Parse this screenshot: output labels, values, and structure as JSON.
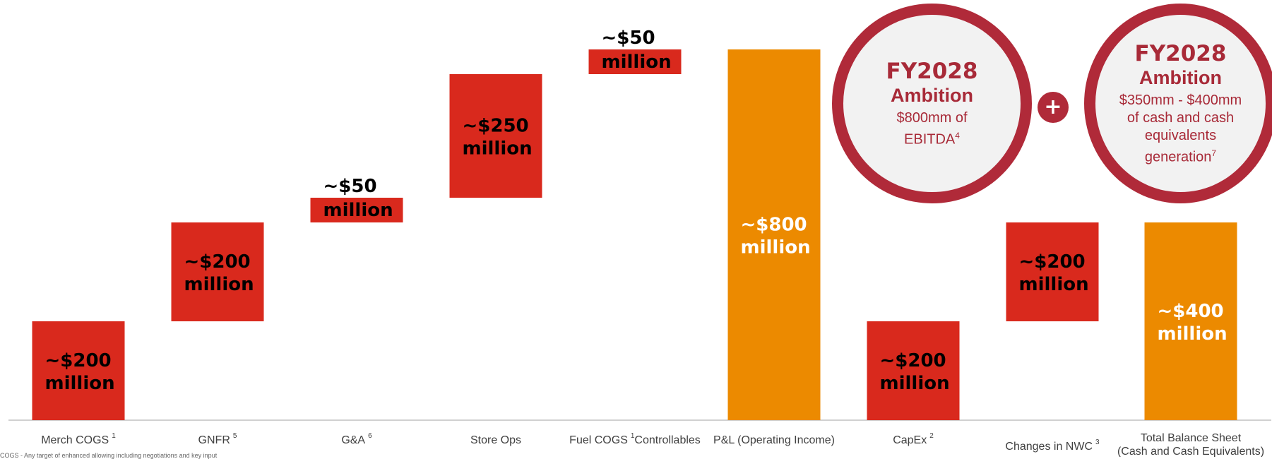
{
  "chart_data": {
    "type": "bar",
    "subtype": "waterfall",
    "ylim": [
      0,
      1100
    ],
    "colors": {
      "red": "#d9291d",
      "orange": "#ec8a00"
    },
    "bars": [
      {
        "category": "Merch COGS",
        "sup": "1",
        "base": 0,
        "value": 200,
        "amount": "~$200",
        "unit": "million",
        "color": "red",
        "labelColor": "#000000"
      },
      {
        "category": "GNFR",
        "sup": "5",
        "base": 200,
        "value": 200,
        "amount": "~$200",
        "unit": "million",
        "color": "red",
        "labelColor": "#000000"
      },
      {
        "category": "G&A",
        "sup": "6",
        "base": 400,
        "value": 50,
        "amount": "~$50",
        "unit": "million",
        "color": "red",
        "labelColor": "#000000"
      },
      {
        "category": "Store Ops",
        "sup": "",
        "base": 450,
        "value": 250,
        "amount": "~$250",
        "unit": "million",
        "color": "red",
        "labelColor": "#000000"
      },
      {
        "category": "Fuel COGS",
        "sup": "1",
        "category_suffix": "Controllables",
        "base": 700,
        "value": 50,
        "amount": "~$50",
        "unit": "million",
        "color": "red",
        "labelColor": "#000000"
      },
      {
        "category": "P&L (Operating Income)",
        "sup": "",
        "base": 0,
        "value": 750,
        "amount": "~$800",
        "unit": "million",
        "color": "orange",
        "labelColor": "#ffffff"
      },
      {
        "category": "CapEx",
        "sup": "2",
        "base": 0,
        "value": 200,
        "amount": "~$200",
        "unit": "million",
        "color": "red",
        "labelColor": "#000000"
      },
      {
        "category": "Changes in NWC",
        "sup": "3",
        "base": 200,
        "value": 200,
        "amount": "~$200",
        "unit": "million",
        "color": "red",
        "labelColor": "#000000"
      },
      {
        "category": "Total Balance Sheet",
        "sup": "",
        "category_line2": "(Cash and Cash Equivalents)",
        "base": 0,
        "value": 400,
        "amount": "~$400",
        "unit": "million",
        "color": "orange",
        "labelColor": "#ffffff"
      }
    ]
  },
  "bubbles": {
    "ebitda": {
      "year": "FY2028",
      "ambition": "Ambition",
      "desc": "$800mm of EBITDA",
      "sup": "4"
    },
    "cash": {
      "year": "FY2028",
      "ambition": "Ambition",
      "desc": "$350mm - $400mm of cash and cash equivalents generation",
      "sup": "7"
    }
  },
  "footnote": "COGS - Any target of enhanced allowing including negotiations and key input"
}
